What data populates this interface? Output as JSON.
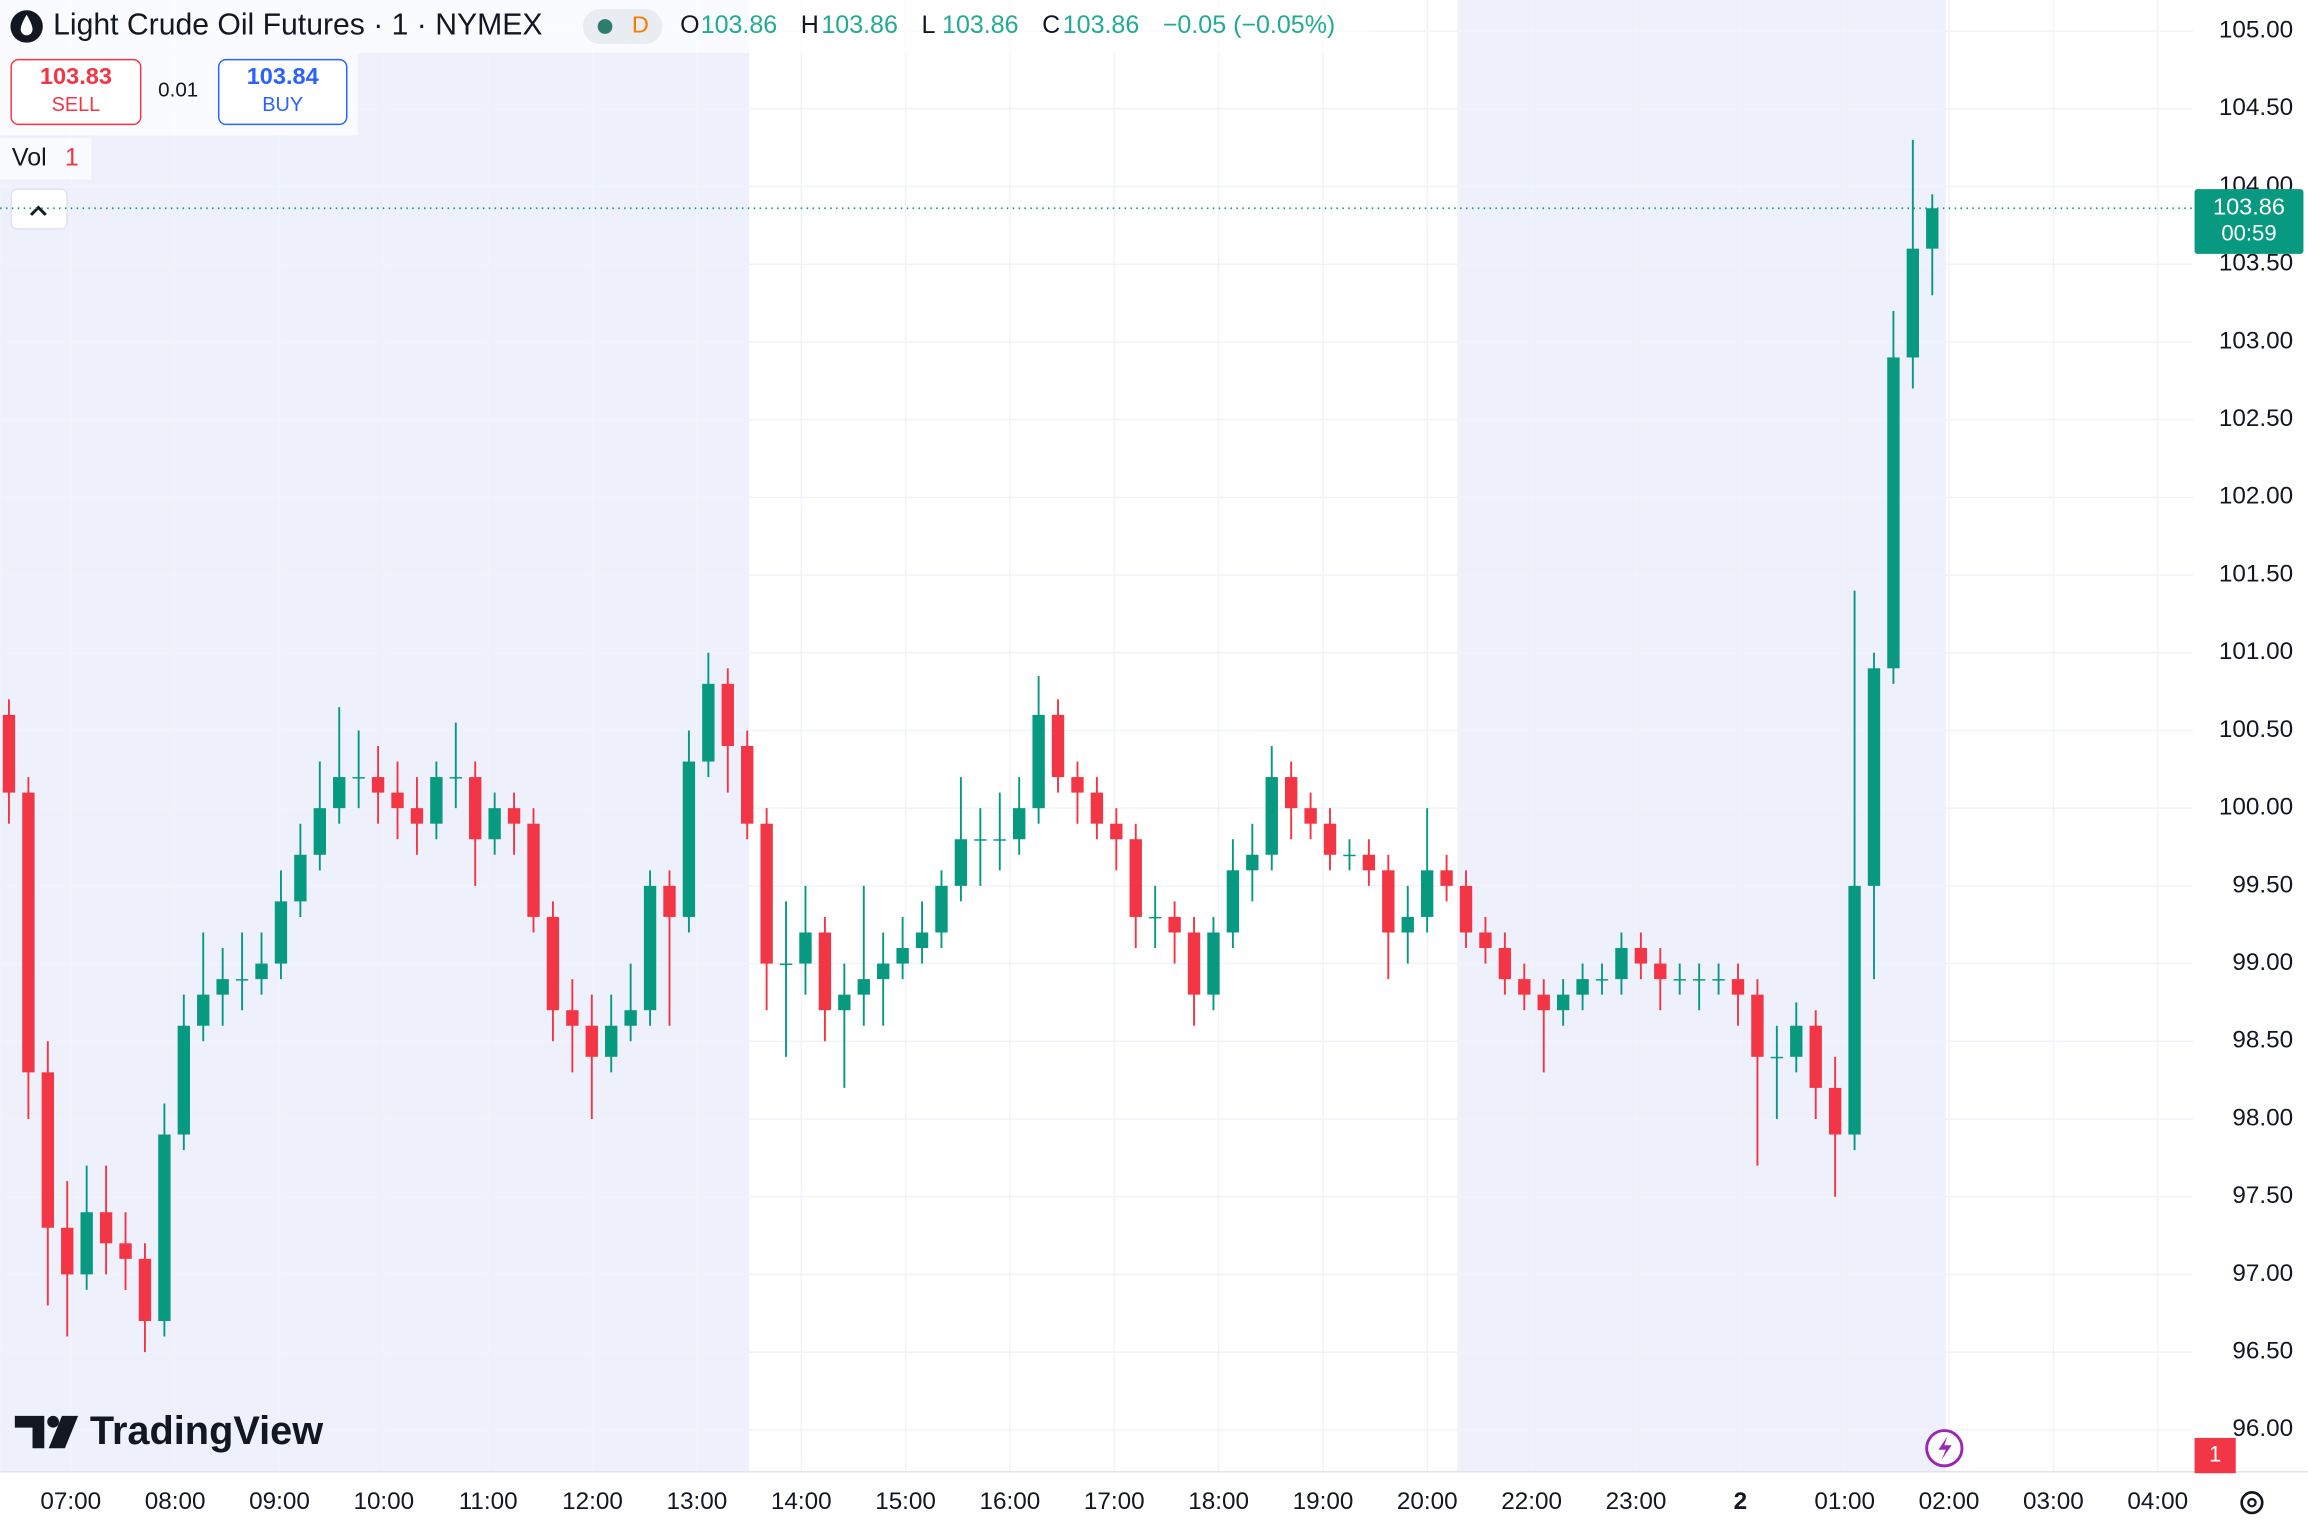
{
  "header": {
    "title": "Light Crude Oil Futures · 1 · NYMEX",
    "badge": "D",
    "ohlc": [
      {
        "label": "O",
        "value": 103.86
      },
      {
        "label": "H",
        "value": 103.86
      },
      {
        "label": "L",
        "value": 103.86
      },
      {
        "label": "C",
        "value": 103.86
      }
    ],
    "change": "−0.05 (−0.05%)"
  },
  "trade": {
    "sell_price": 103.83,
    "sell_label": "SELL",
    "spread": 0.01,
    "buy_price": 103.84,
    "buy_label": "BUY"
  },
  "volume_legend": {
    "label": "Vol",
    "value": 1
  },
  "logo": "TradingView",
  "alert_count": 1,
  "chart_data": {
    "type": "candlestick",
    "x_tick_labels": [
      "07:00",
      "08:00",
      "09:00",
      "10:00",
      "11:00",
      "12:00",
      "13:00",
      "14:00",
      "15:00",
      "16:00",
      "17:00",
      "18:00",
      "19:00",
      "20:00",
      "22:00",
      "23:00",
      "2",
      "01:00",
      "02:00",
      "03:00",
      "04:00"
    ],
    "ylim": [
      95.73,
      105.2
    ],
    "yticks": [
      {
        "value": 96,
        "label": "96.00"
      },
      {
        "value": 96.5,
        "label": "96.50"
      },
      {
        "value": 97,
        "label": "97.00"
      },
      {
        "value": 97.5,
        "label": "97.50"
      },
      {
        "value": 98,
        "label": "98.00"
      },
      {
        "value": 98.5,
        "label": "98.50"
      },
      {
        "value": 99,
        "label": "99.00"
      },
      {
        "value": 99.5,
        "label": "99.50"
      },
      {
        "value": 100,
        "label": "100.00"
      },
      {
        "value": 100.5,
        "label": "100.50"
      },
      {
        "value": 101,
        "label": "101.00"
      },
      {
        "value": 101.5,
        "label": "101.50"
      },
      {
        "value": 102,
        "label": "102.00"
      },
      {
        "value": 102.5,
        "label": "102.50"
      },
      {
        "value": 103,
        "label": "103.00"
      },
      {
        "value": 103.5,
        "label": "103.50"
      },
      {
        "value": 104,
        "label": "104.00"
      },
      {
        "value": 104.5,
        "label": "104.50"
      },
      {
        "value": 105,
        "label": "105.00"
      }
    ],
    "grid": true,
    "up_color": "#089981",
    "down_color": "#f23645",
    "last_price": 103.86,
    "countdown": "00:59",
    "candles": [
      [
        100.6,
        100.7,
        99.9,
        100.1
      ],
      [
        100.1,
        100.2,
        98.0,
        98.3
      ],
      [
        98.3,
        98.5,
        96.8,
        97.3
      ],
      [
        97.3,
        97.6,
        96.6,
        97.0
      ],
      [
        97.0,
        97.7,
        96.9,
        97.4
      ],
      [
        97.4,
        97.7,
        97.0,
        97.2
      ],
      [
        97.2,
        97.4,
        96.9,
        97.1
      ],
      [
        97.1,
        97.2,
        96.5,
        96.7
      ],
      [
        96.7,
        98.1,
        96.6,
        97.9
      ],
      [
        97.9,
        98.8,
        97.8,
        98.6
      ],
      [
        98.6,
        99.2,
        98.5,
        98.8
      ],
      [
        98.8,
        99.1,
        98.6,
        98.9
      ],
      [
        98.9,
        99.2,
        98.7,
        98.9
      ],
      [
        98.9,
        99.2,
        98.8,
        99.0
      ],
      [
        99.0,
        99.6,
        98.9,
        99.4
      ],
      [
        99.4,
        99.9,
        99.3,
        99.7
      ],
      [
        99.7,
        100.3,
        99.6,
        100.0
      ],
      [
        100.0,
        100.65,
        99.9,
        100.2
      ],
      [
        100.2,
        100.5,
        100.0,
        100.2
      ],
      [
        100.2,
        100.4,
        99.9,
        100.1
      ],
      [
        100.1,
        100.3,
        99.8,
        100.0
      ],
      [
        100.0,
        100.2,
        99.7,
        99.9
      ],
      [
        99.9,
        100.3,
        99.8,
        100.2
      ],
      [
        100.2,
        100.55,
        100.0,
        100.2
      ],
      [
        100.2,
        100.3,
        99.5,
        99.8
      ],
      [
        99.8,
        100.1,
        99.7,
        100.0
      ],
      [
        100.0,
        100.1,
        99.7,
        99.9
      ],
      [
        99.9,
        100.0,
        99.2,
        99.3
      ],
      [
        99.3,
        99.4,
        98.5,
        98.7
      ],
      [
        98.7,
        98.9,
        98.3,
        98.6
      ],
      [
        98.6,
        98.8,
        98.0,
        98.4
      ],
      [
        98.4,
        98.8,
        98.3,
        98.6
      ],
      [
        98.6,
        99.0,
        98.5,
        98.7
      ],
      [
        98.7,
        99.6,
        98.6,
        99.5
      ],
      [
        99.5,
        99.6,
        98.6,
        99.3
      ],
      [
        99.3,
        100.5,
        99.2,
        100.3
      ],
      [
        100.3,
        101.0,
        100.2,
        100.8
      ],
      [
        100.8,
        100.9,
        100.1,
        100.4
      ],
      [
        100.4,
        100.5,
        99.8,
        99.9
      ],
      [
        99.9,
        100.0,
        98.7,
        99.0
      ],
      [
        99.0,
        99.4,
        98.4,
        99.0
      ],
      [
        99.0,
        99.5,
        98.8,
        99.2
      ],
      [
        99.2,
        99.3,
        98.5,
        98.7
      ],
      [
        98.7,
        99.0,
        98.2,
        98.8
      ],
      [
        98.8,
        99.5,
        98.6,
        98.9
      ],
      [
        98.9,
        99.2,
        98.6,
        99.0
      ],
      [
        99.0,
        99.3,
        98.9,
        99.1
      ],
      [
        99.1,
        99.4,
        99.0,
        99.2
      ],
      [
        99.2,
        99.6,
        99.1,
        99.5
      ],
      [
        99.5,
        100.2,
        99.4,
        99.8
      ],
      [
        99.8,
        100.0,
        99.5,
        99.8
      ],
      [
        99.8,
        100.1,
        99.6,
        99.8
      ],
      [
        99.8,
        100.2,
        99.7,
        100.0
      ],
      [
        100.0,
        100.85,
        99.9,
        100.6
      ],
      [
        100.6,
        100.7,
        100.1,
        100.2
      ],
      [
        100.2,
        100.3,
        99.9,
        100.1
      ],
      [
        100.1,
        100.2,
        99.8,
        99.9
      ],
      [
        99.9,
        100.0,
        99.6,
        99.8
      ],
      [
        99.8,
        99.9,
        99.1,
        99.3
      ],
      [
        99.3,
        99.5,
        99.1,
        99.3
      ],
      [
        99.3,
        99.4,
        99.0,
        99.2
      ],
      [
        99.2,
        99.3,
        98.6,
        98.8
      ],
      [
        98.8,
        99.3,
        98.7,
        99.2
      ],
      [
        99.2,
        99.8,
        99.1,
        99.6
      ],
      [
        99.6,
        99.9,
        99.4,
        99.7
      ],
      [
        99.7,
        100.4,
        99.6,
        100.2
      ],
      [
        100.2,
        100.3,
        99.8,
        100.0
      ],
      [
        100.0,
        100.1,
        99.8,
        99.9
      ],
      [
        99.9,
        100.0,
        99.6,
        99.7
      ],
      [
        99.7,
        99.8,
        99.6,
        99.7
      ],
      [
        99.7,
        99.8,
        99.5,
        99.6
      ],
      [
        99.6,
        99.7,
        98.9,
        99.2
      ],
      [
        99.2,
        99.5,
        99.0,
        99.3
      ],
      [
        99.3,
        100.0,
        99.2,
        99.6
      ],
      [
        99.6,
        99.7,
        99.4,
        99.5
      ],
      [
        99.5,
        99.6,
        99.1,
        99.2
      ],
      [
        99.2,
        99.3,
        99.0,
        99.1
      ],
      [
        99.1,
        99.2,
        98.8,
        98.9
      ],
      [
        98.9,
        99.0,
        98.7,
        98.8
      ],
      [
        98.8,
        98.9,
        98.3,
        98.7
      ],
      [
        98.7,
        98.9,
        98.6,
        98.8
      ],
      [
        98.8,
        99.0,
        98.7,
        98.9
      ],
      [
        98.9,
        99.0,
        98.8,
        98.9
      ],
      [
        98.9,
        99.2,
        98.8,
        99.1
      ],
      [
        99.1,
        99.2,
        98.9,
        99.0
      ],
      [
        99.0,
        99.1,
        98.7,
        98.9
      ],
      [
        98.9,
        99.0,
        98.8,
        98.9
      ],
      [
        98.9,
        99.0,
        98.7,
        98.9
      ],
      [
        98.9,
        99.0,
        98.8,
        98.9
      ],
      [
        98.9,
        99.0,
        98.6,
        98.8
      ],
      [
        98.8,
        98.9,
        97.7,
        98.4
      ],
      [
        98.4,
        98.6,
        98.0,
        98.4
      ],
      [
        98.4,
        98.75,
        98.3,
        98.6
      ],
      [
        98.6,
        98.7,
        98.0,
        98.2
      ],
      [
        98.2,
        98.4,
        97.5,
        97.9
      ],
      [
        97.9,
        101.4,
        97.8,
        99.5
      ],
      [
        99.5,
        101.0,
        98.9,
        100.9
      ],
      [
        100.9,
        103.2,
        100.8,
        102.9
      ],
      [
        102.9,
        104.3,
        102.7,
        103.6
      ],
      [
        103.6,
        103.95,
        103.3,
        103.86
      ]
    ]
  }
}
